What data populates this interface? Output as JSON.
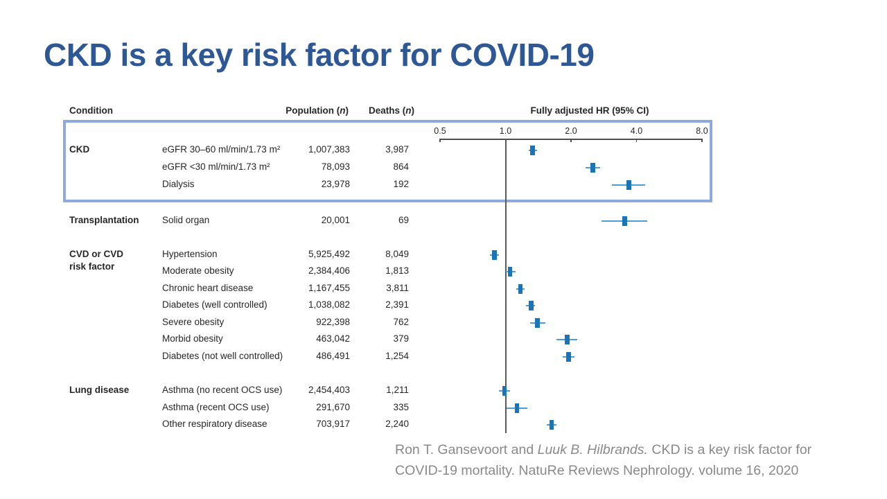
{
  "slide": {
    "title": "CKD is a key risk factor for COVID-19"
  },
  "figure": {
    "headers": {
      "condition": "Condition",
      "population_prefix": "Population (",
      "population_n": "n",
      "population_suffix": ")",
      "deaths_prefix": "Deaths (",
      "deaths_n": "n",
      "deaths_suffix": ")",
      "hr": "Fully adjusted HR (95% CI)"
    },
    "axis_tick_labels": [
      "0.5",
      "1.0",
      "2.0",
      "4.0",
      "8.0"
    ],
    "colors": {
      "highlight_box": "#8ea9db",
      "marker": "#1b74b8",
      "ci_line": "#4c9cd7",
      "title": "#2e5796",
      "citation": "#898989"
    }
  },
  "citation": {
    "line1_regular": "Ron T. Gansevoort and ",
    "line1_italic": "Luuk B. Hilbrands.",
    "line1_rest": " CKD is a key risk factor for",
    "line2": "COVID-19 mortality. NatuRe Reviews Nephrology. volume 16, 2020"
  },
  "chart_data": {
    "type": "forest",
    "title": "Fully adjusted HR (95% CI)",
    "x_scale": "log2",
    "x_ticks": [
      0.5,
      1.0,
      2.0,
      4.0,
      8.0
    ],
    "x_range": [
      0.5,
      8.0
    ],
    "reference_line": 1.0,
    "columns": [
      "Condition",
      "Population (n)",
      "Deaths (n)",
      "Fully adjusted HR (95% CI)"
    ],
    "groups": [
      {
        "group": "CKD",
        "highlighted": true,
        "rows": [
          {
            "condition": "eGFR 30–60 ml/min/1.73 m²",
            "population": "1,007,383",
            "deaths": "3,987",
            "hr": 1.33,
            "ci": [
              1.28,
              1.4
            ]
          },
          {
            "condition": "eGFR <30 ml/min/1.73 m²",
            "population": "78,093",
            "deaths": "864",
            "hr": 2.52,
            "ci": [
              2.33,
              2.72
            ]
          },
          {
            "condition": "Dialysis",
            "population": "23,978",
            "deaths": "192",
            "hr": 3.69,
            "ci": [
              3.09,
              4.39
            ]
          }
        ]
      },
      {
        "group": "Transplantation",
        "highlighted": false,
        "rows": [
          {
            "condition": "Solid organ",
            "population": "20,001",
            "deaths": "69",
            "hr": 3.53,
            "ci": [
              2.77,
              4.49
            ]
          }
        ]
      },
      {
        "group": "CVD or CVD\nrisk factor",
        "highlighted": false,
        "rows": [
          {
            "condition": "Hypertension",
            "population": "5,925,492",
            "deaths": "8,049",
            "hr": 0.89,
            "ci": [
              0.85,
              0.93
            ]
          },
          {
            "condition": "Moderate obesity",
            "population": "2,384,406",
            "deaths": "1,813",
            "hr": 1.05,
            "ci": [
              1.0,
              1.11
            ]
          },
          {
            "condition": "Chronic heart disease",
            "population": "1,167,455",
            "deaths": "3,811",
            "hr": 1.17,
            "ci": [
              1.12,
              1.22
            ]
          },
          {
            "condition": "Diabetes (well controlled)",
            "population": "1,038,082",
            "deaths": "2,391",
            "hr": 1.31,
            "ci": [
              1.24,
              1.37
            ]
          },
          {
            "condition": "Severe obesity",
            "population": "922,398",
            "deaths": "762",
            "hr": 1.4,
            "ci": [
              1.3,
              1.52
            ]
          },
          {
            "condition": "Morbid obesity",
            "population": "463,042",
            "deaths": "379",
            "hr": 1.92,
            "ci": [
              1.72,
              2.13
            ]
          },
          {
            "condition": "Diabetes (not well controlled)",
            "population": "486,491",
            "deaths": "1,254",
            "hr": 1.95,
            "ci": [
              1.83,
              2.08
            ]
          }
        ]
      },
      {
        "group": "Lung disease",
        "highlighted": false,
        "rows": [
          {
            "condition": "Asthma (no recent OCS use)",
            "population": "2,454,403",
            "deaths": "1,211",
            "hr": 0.99,
            "ci": [
              0.93,
              1.05
            ]
          },
          {
            "condition": "Asthma (recent OCS use)",
            "population": "291,670",
            "deaths": "335",
            "hr": 1.13,
            "ci": [
              1.01,
              1.26
            ]
          },
          {
            "condition": "Other respiratory disease",
            "population": "703,917",
            "deaths": "2,240",
            "hr": 1.63,
            "ci": [
              1.55,
              1.71
            ]
          }
        ]
      }
    ]
  }
}
